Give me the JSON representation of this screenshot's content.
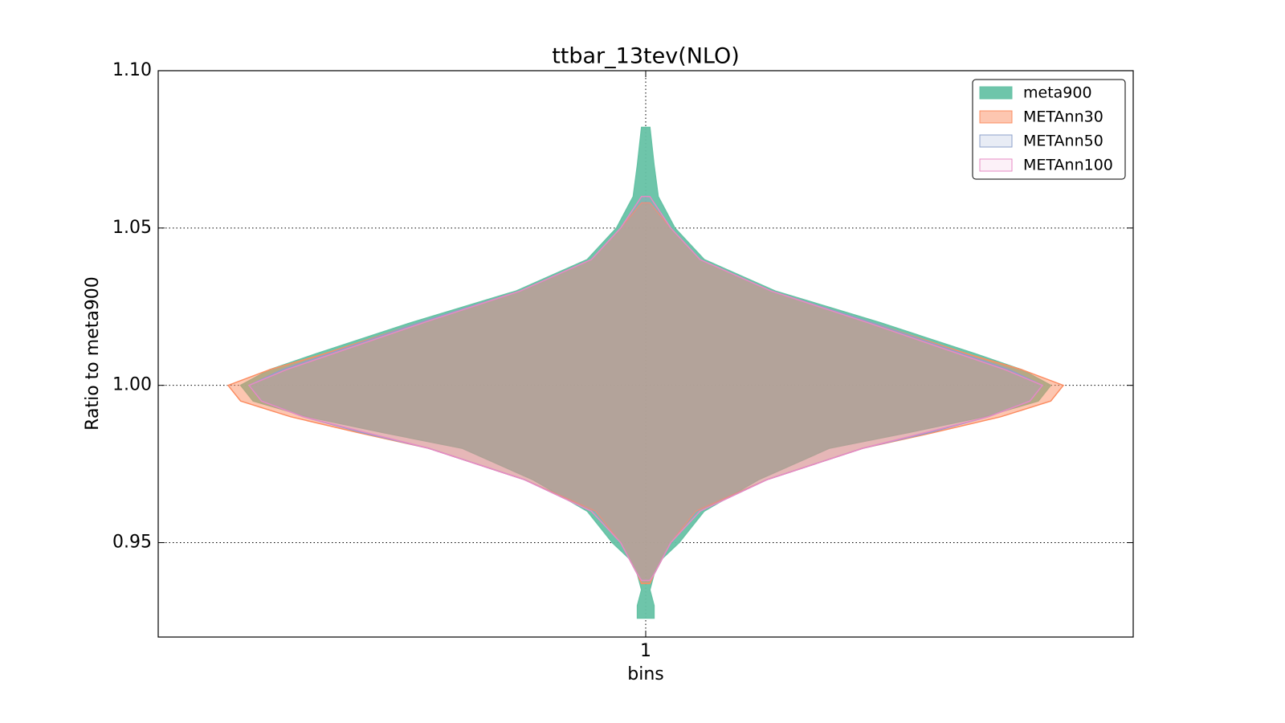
{
  "chart_data": {
    "type": "violin",
    "title": "ttbar_13tev(NLO)",
    "xlabel": "bins",
    "ylabel": "Ratio to meta900",
    "categories": [
      "1"
    ],
    "ylim": [
      0.92,
      1.1
    ],
    "yticks": [
      {
        "value": 0.95,
        "label": "0.95"
      },
      {
        "value": 1.0,
        "label": "1.00"
      },
      1.05,
      {
        "value": 1.1,
        "label": "1.10"
      }
    ],
    "grid": true,
    "legend": "upper right",
    "series": [
      {
        "name": "meta900",
        "color": "#66c2a5",
        "y": [
          1.082,
          1.07,
          1.06,
          1.05,
          1.04,
          1.03,
          1.02,
          1.01,
          1.005,
          1.0,
          0.995,
          0.99,
          0.985,
          0.98,
          0.97,
          0.96,
          0.95,
          0.945,
          0.94,
          0.935,
          0.93,
          0.926
        ],
        "density": [
          0.01,
          0.02,
          0.03,
          0.07,
          0.14,
          0.31,
          0.56,
          0.79,
          0.9,
          0.97,
          0.94,
          0.81,
          0.63,
          0.44,
          0.27,
          0.14,
          0.08,
          0.04,
          0.02,
          0.01,
          0.02,
          0.02
        ]
      },
      {
        "name": "METAnn30",
        "color": "#fc8d62",
        "y": [
          1.058,
          1.05,
          1.04,
          1.03,
          1.02,
          1.01,
          1.005,
          1.0,
          0.995,
          0.99,
          0.985,
          0.98,
          0.97,
          0.96,
          0.95,
          0.94,
          0.937
        ],
        "density": [
          0.01,
          0.06,
          0.13,
          0.3,
          0.54,
          0.77,
          0.9,
          1.0,
          0.97,
          0.85,
          0.69,
          0.52,
          0.29,
          0.12,
          0.06,
          0.02,
          0.01
        ]
      },
      {
        "name": "METAnn50",
        "color": "#8da0cb",
        "y": [
          1.06,
          1.05,
          1.04,
          1.03,
          1.02,
          1.01,
          1.005,
          1.0,
          0.995,
          0.99,
          0.985,
          0.98,
          0.97,
          0.96,
          0.95,
          0.94,
          0.938
        ],
        "density": [
          0.01,
          0.06,
          0.13,
          0.3,
          0.54,
          0.76,
          0.87,
          0.95,
          0.92,
          0.82,
          0.68,
          0.52,
          0.29,
          0.13,
          0.06,
          0.02,
          0.01
        ]
      },
      {
        "name": "METAnn100",
        "color": "#e78ac3",
        "y": [
          1.06,
          1.05,
          1.04,
          1.03,
          1.02,
          1.01,
          1.005,
          1.0,
          0.995,
          0.99,
          0.985,
          0.98,
          0.97,
          0.96,
          0.95,
          0.94,
          0.938
        ],
        "density": [
          0.01,
          0.06,
          0.13,
          0.3,
          0.53,
          0.75,
          0.86,
          0.95,
          0.92,
          0.82,
          0.67,
          0.52,
          0.29,
          0.13,
          0.06,
          0.02,
          0.01
        ]
      }
    ]
  }
}
